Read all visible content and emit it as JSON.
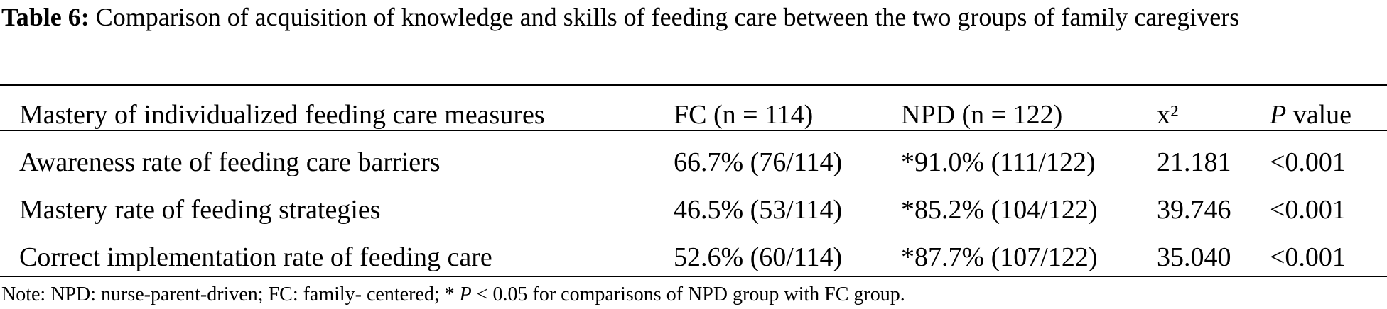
{
  "caption": {
    "label": "Table 6:",
    "text": "Comparison of acquisition of knowledge and skills of feeding care between the two groups of family caregivers"
  },
  "table": {
    "headers": {
      "measure": "Mastery of individualized feeding care measures",
      "fc": "FC (n = 114)",
      "npd": "NPD (n = 122)",
      "chi": "x²",
      "p_italic": "P",
      "p_rest": " value"
    },
    "rows": [
      {
        "measure": "Awareness rate of feeding care barriers",
        "fc": "66.7% (76/114)",
        "npd": "*91.0% (111/122)",
        "chi": "21.181",
        "p": "<0.001"
      },
      {
        "measure": "Mastery rate of feeding strategies",
        "fc": "46.5% (53/114)",
        "npd": "*85.2% (104/122)",
        "chi": "39.746",
        "p": "<0.001"
      },
      {
        "measure": "Correct implementation rate of feeding care",
        "fc": "52.6% (60/114)",
        "npd": "*87.7% (107/122)",
        "chi": "35.040",
        "p": "<0.001"
      }
    ]
  },
  "note": {
    "prefix": "Note: NPD: nurse-parent-driven; FC: family- centered; * ",
    "p_italic": "P",
    "suffix": " < 0.05 for comparisons of NPD group with FC group."
  }
}
